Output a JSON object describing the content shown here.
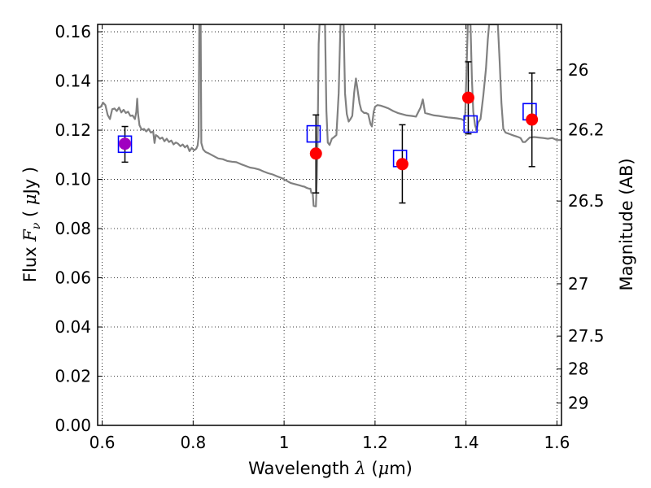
{
  "chart_data": {
    "type": "scatter",
    "xlabel_prefix": "Wavelength",
    "xlabel_symbol": "λ",
    "xlabel_unit_open": " (",
    "xlabel_mu": "μ",
    "xlabel_unit_close": "m)",
    "ylabel_prefix": "Flux",
    "ylabel_symbol": "F",
    "ylabel_sub": "ν",
    "ylabel_unit_open": "( ",
    "ylabel_mu": "μ",
    "ylabel_unit_close": "Jy )",
    "y2label": "Magnitude (AB)",
    "xlim": [
      0.59,
      1.61
    ],
    "ylim": [
      0.0,
      0.163
    ],
    "grid": true,
    "x_ticks": [
      {
        "value": 0.6,
        "label": "0.6"
      },
      {
        "value": 0.8,
        "label": "0.8"
      },
      {
        "value": 1.0,
        "label": "1"
      },
      {
        "value": 1.2,
        "label": "1.2"
      },
      {
        "value": 1.4,
        "label": "1.4"
      },
      {
        "value": 1.6,
        "label": "1.6"
      }
    ],
    "y_ticks": [
      {
        "value": 0.0,
        "label": "0.00"
      },
      {
        "value": 0.02,
        "label": "0.02"
      },
      {
        "value": 0.04,
        "label": "0.04"
      },
      {
        "value": 0.06,
        "label": "0.06"
      },
      {
        "value": 0.08,
        "label": "0.08"
      },
      {
        "value": 0.1,
        "label": "0.10"
      },
      {
        "value": 0.12,
        "label": "0.12"
      },
      {
        "value": 0.14,
        "label": "0.14"
      },
      {
        "value": 0.16,
        "label": "0.16"
      }
    ],
    "mag_ticks": [
      {
        "mag": 26.0,
        "label": "26"
      },
      {
        "mag": 26.2,
        "label": "26.2"
      },
      {
        "mag": 26.5,
        "label": "26.5"
      },
      {
        "mag": 27.0,
        "label": "27"
      },
      {
        "mag": 27.5,
        "label": "27.5"
      },
      {
        "mag": 28.0,
        "label": "28"
      },
      {
        "mag": 29.0,
        "label": "29"
      }
    ],
    "observed": {
      "color": "#ff0000",
      "points": [
        {
          "x": 0.65,
          "y": 0.1145,
          "yerr_low": 0.107,
          "yerr_high": 0.1215
        },
        {
          "x": 1.07,
          "y": 0.1105,
          "yerr_low": 0.0945,
          "yerr_high": 0.1262
        },
        {
          "x": 1.26,
          "y": 0.1062,
          "yerr_low": 0.0904,
          "yerr_high": 0.1222
        },
        {
          "x": 1.405,
          "y": 0.1332,
          "yerr_low": 0.1185,
          "yerr_high": 0.1478
        },
        {
          "x": 1.545,
          "y": 0.1243,
          "yerr_low": 0.1052,
          "yerr_high": 0.1432
        }
      ]
    },
    "model_photometry": {
      "color": "#0000ff",
      "points": [
        {
          "x": 0.65,
          "y": 0.1143
        },
        {
          "x": 1.065,
          "y": 0.1185
        },
        {
          "x": 1.255,
          "y": 0.1085
        },
        {
          "x": 1.41,
          "y": 0.1225
        },
        {
          "x": 1.54,
          "y": 0.1275
        }
      ]
    },
    "overlap_marker_color": "#a000c0",
    "spectrum": {
      "color": "#808080",
      "points": [
        [
          0.59,
          0.129
        ],
        [
          0.597,
          0.1295
        ],
        [
          0.602,
          0.1312
        ],
        [
          0.607,
          0.1302
        ],
        [
          0.612,
          0.1262
        ],
        [
          0.617,
          0.1245
        ],
        [
          0.622,
          0.1285
        ],
        [
          0.627,
          0.1288
        ],
        [
          0.632,
          0.1278
        ],
        [
          0.637,
          0.1292
        ],
        [
          0.642,
          0.1272
        ],
        [
          0.647,
          0.1283
        ],
        [
          0.652,
          0.127
        ],
        [
          0.657,
          0.1275
        ],
        [
          0.662,
          0.1258
        ],
        [
          0.667,
          0.126
        ],
        [
          0.672,
          0.1245
        ],
        [
          0.675,
          0.1275
        ],
        [
          0.677,
          0.1328
        ],
        [
          0.679,
          0.1265
        ],
        [
          0.682,
          0.122
        ],
        [
          0.687,
          0.1202
        ],
        [
          0.692,
          0.1205
        ],
        [
          0.697,
          0.1195
        ],
        [
          0.702,
          0.1205
        ],
        [
          0.707,
          0.119
        ],
        [
          0.712,
          0.1195
        ],
        [
          0.715,
          0.1148
        ],
        [
          0.718,
          0.118
        ],
        [
          0.722,
          0.1175
        ],
        [
          0.727,
          0.1165
        ],
        [
          0.732,
          0.117
        ],
        [
          0.737,
          0.1155
        ],
        [
          0.742,
          0.1165
        ],
        [
          0.747,
          0.1152
        ],
        [
          0.752,
          0.1158
        ],
        [
          0.757,
          0.1142
        ],
        [
          0.762,
          0.115
        ],
        [
          0.767,
          0.1145
        ],
        [
          0.772,
          0.1135
        ],
        [
          0.777,
          0.1142
        ],
        [
          0.782,
          0.113
        ],
        [
          0.787,
          0.1138
        ],
        [
          0.792,
          0.1115
        ],
        [
          0.797,
          0.1128
        ],
        [
          0.802,
          0.1118
        ],
        [
          0.807,
          0.1125
        ],
        [
          0.81,
          0.1138
        ],
        [
          0.812,
          0.1175
        ],
        [
          0.8135,
          0.163
        ],
        [
          0.8165,
          0.163
        ],
        [
          0.818,
          0.1148
        ],
        [
          0.822,
          0.1122
        ],
        [
          0.827,
          0.1112
        ],
        [
          0.835,
          0.1105
        ],
        [
          0.845,
          0.1095
        ],
        [
          0.855,
          0.1085
        ],
        [
          0.865,
          0.1082
        ],
        [
          0.875,
          0.1075
        ],
        [
          0.885,
          0.1072
        ],
        [
          0.895,
          0.107
        ],
        [
          0.905,
          0.1062
        ],
        [
          0.915,
          0.1055
        ],
        [
          0.925,
          0.1048
        ],
        [
          0.935,
          0.1045
        ],
        [
          0.945,
          0.104
        ],
        [
          0.955,
          0.1032
        ],
        [
          0.965,
          0.1025
        ],
        [
          0.975,
          0.102
        ],
        [
          0.985,
          0.1012
        ],
        [
          0.995,
          0.1005
        ],
        [
          1.005,
          0.0995
        ],
        [
          1.015,
          0.0985
        ],
        [
          1.025,
          0.098
        ],
        [
          1.035,
          0.0975
        ],
        [
          1.04,
          0.0972
        ],
        [
          1.045,
          0.097
        ],
        [
          1.05,
          0.0965
        ],
        [
          1.055,
          0.0962
        ],
        [
          1.058,
          0.0962
        ],
        [
          1.06,
          0.0945
        ],
        [
          1.063,
          0.0945
        ],
        [
          1.065,
          0.0892
        ],
        [
          1.07,
          0.089
        ],
        [
          1.072,
          0.1
        ],
        [
          1.074,
          0.12
        ],
        [
          1.076,
          0.155
        ],
        [
          1.078,
          0.163
        ],
        [
          1.09,
          0.163
        ],
        [
          1.093,
          0.128
        ],
        [
          1.096,
          0.115
        ],
        [
          1.1,
          0.114
        ],
        [
          1.105,
          0.1165
        ],
        [
          1.11,
          0.1172
        ],
        [
          1.115,
          0.118
        ],
        [
          1.12,
          0.135
        ],
        [
          1.124,
          0.163
        ],
        [
          1.131,
          0.163
        ],
        [
          1.134,
          0.135
        ],
        [
          1.138,
          0.1265
        ],
        [
          1.142,
          0.1235
        ],
        [
          1.146,
          0.1245
        ],
        [
          1.15,
          0.1258
        ],
        [
          1.154,
          0.1352
        ],
        [
          1.158,
          0.141
        ],
        [
          1.162,
          0.136
        ],
        [
          1.166,
          0.1308
        ],
        [
          1.17,
          0.128
        ],
        [
          1.176,
          0.127
        ],
        [
          1.18,
          0.127
        ],
        [
          1.185,
          0.1265
        ],
        [
          1.19,
          0.1225
        ],
        [
          1.193,
          0.1215
        ],
        [
          1.197,
          0.1275
        ],
        [
          1.2,
          0.1295
        ],
        [
          1.205,
          0.1302
        ],
        [
          1.212,
          0.13
        ],
        [
          1.22,
          0.1295
        ],
        [
          1.23,
          0.1288
        ],
        [
          1.24,
          0.1278
        ],
        [
          1.25,
          0.127
        ],
        [
          1.26,
          0.1265
        ],
        [
          1.27,
          0.126
        ],
        [
          1.28,
          0.1258
        ],
        [
          1.29,
          0.1255
        ],
        [
          1.3,
          0.1292
        ],
        [
          1.305,
          0.1325
        ],
        [
          1.31,
          0.127
        ],
        [
          1.32,
          0.1265
        ],
        [
          1.33,
          0.126
        ],
        [
          1.34,
          0.1258
        ],
        [
          1.35,
          0.1255
        ],
        [
          1.36,
          0.1252
        ],
        [
          1.37,
          0.125
        ],
        [
          1.38,
          0.1248
        ],
        [
          1.39,
          0.1245
        ],
        [
          1.395,
          0.124
        ],
        [
          1.398,
          0.125
        ],
        [
          1.401,
          0.143
        ],
        [
          1.404,
          0.163
        ],
        [
          1.41,
          0.163
        ],
        [
          1.413,
          0.141
        ],
        [
          1.416,
          0.1275
        ],
        [
          1.42,
          0.122
        ],
        [
          1.423,
          0.1202
        ],
        [
          1.427,
          0.1232
        ],
        [
          1.432,
          0.1245
        ],
        [
          1.438,
          0.134
        ],
        [
          1.444,
          0.145
        ],
        [
          1.448,
          0.157
        ],
        [
          1.451,
          0.163
        ],
        [
          1.47,
          0.163
        ],
        [
          1.474,
          0.148
        ],
        [
          1.478,
          0.131
        ],
        [
          1.482,
          0.1205
        ],
        [
          1.487,
          0.119
        ],
        [
          1.495,
          0.1185
        ],
        [
          1.505,
          0.1178
        ],
        [
          1.515,
          0.1172
        ],
        [
          1.52,
          0.1168
        ],
        [
          1.525,
          0.1152
        ],
        [
          1.53,
          0.1152
        ],
        [
          1.54,
          0.117
        ],
        [
          1.55,
          0.1172
        ],
        [
          1.56,
          0.117
        ],
        [
          1.57,
          0.1168
        ],
        [
          1.58,
          0.1165
        ],
        [
          1.59,
          0.1168
        ],
        [
          1.6,
          0.116
        ],
        [
          1.61,
          0.116
        ]
      ]
    }
  }
}
